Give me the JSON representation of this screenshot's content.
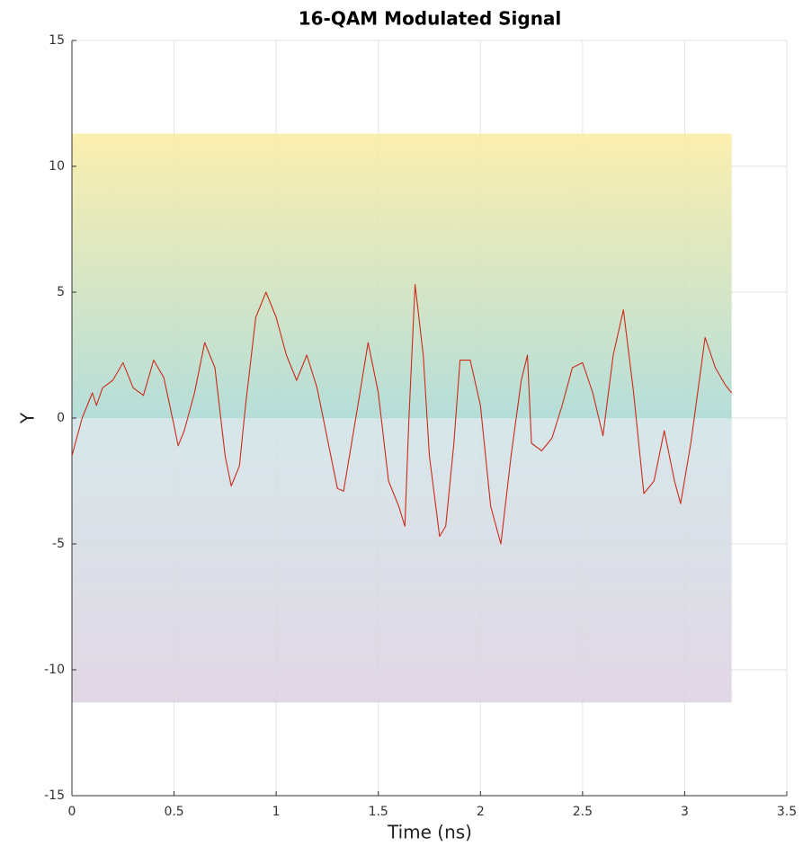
{
  "chart_data": {
    "type": "line",
    "title": "16-QAM Modulated Signal",
    "xlabel": "Time (ns)",
    "ylabel": "Y",
    "x": [
      0,
      0.05,
      0.1,
      0.12,
      0.15,
      0.2,
      0.25,
      0.3,
      0.35,
      0.4,
      0.45,
      0.5,
      0.52,
      0.55,
      0.6,
      0.65,
      0.7,
      0.75,
      0.78,
      0.82,
      0.85,
      0.9,
      0.95,
      1.0,
      1.05,
      1.1,
      1.15,
      1.2,
      1.25,
      1.3,
      1.33,
      1.4,
      1.45,
      1.5,
      1.55,
      1.6,
      1.63,
      1.65,
      1.68,
      1.72,
      1.75,
      1.8,
      1.83,
      1.87,
      1.9,
      1.95,
      2.0,
      2.05,
      2.1,
      2.15,
      2.2,
      2.23,
      2.25,
      2.3,
      2.35,
      2.4,
      2.45,
      2.5,
      2.55,
      2.6,
      2.65,
      2.7,
      2.75,
      2.8,
      2.85,
      2.9,
      2.95,
      2.98,
      3.03,
      3.1,
      3.15,
      3.2,
      3.23
    ],
    "series": [
      {
        "color": "#cc2a1a",
        "values": [
          -1.5,
          0,
          1.0,
          0.5,
          1.2,
          1.5,
          2.2,
          1.2,
          0.9,
          2.3,
          1.6,
          -0.3,
          -1.1,
          -0.5,
          1.0,
          3.0,
          2.0,
          -1.5,
          -2.7,
          -1.9,
          0.5,
          4.0,
          5.0,
          4.0,
          2.5,
          1.5,
          2.5,
          1.2,
          -0.8,
          -2.8,
          -2.9,
          0.5,
          3.0,
          1.0,
          -2.5,
          -3.5,
          -4.3,
          0,
          5.3,
          2.5,
          -1.5,
          -4.7,
          -4.3,
          -1.0,
          2.3,
          2.3,
          0.5,
          -3.5,
          -5.0,
          -1.5,
          1.5,
          2.5,
          -1.0,
          -1.3,
          -0.8,
          0.5,
          2.0,
          2.2,
          1.0,
          -0.7,
          2.5,
          4.3,
          1.0,
          -3.0,
          -2.5,
          -0.5,
          -2.5,
          -3.4,
          -1.0,
          3.2,
          2.0,
          1.3,
          1.0
        ]
      }
    ],
    "band": {
      "x": [
        0,
        3.23
      ],
      "y": [
        -11.3,
        11.3
      ],
      "colors": [
        "#dcd0e0",
        "#cfe3e6",
        "#a8d8d3",
        "#fbeca0"
      ]
    },
    "xlim": [
      0,
      3.5
    ],
    "ylim": [
      -15,
      15
    ],
    "xticks": [
      0,
      0.5,
      1,
      1.5,
      2,
      2.5,
      3,
      3.5
    ],
    "yticks": [
      -15,
      -10,
      -5,
      0,
      5,
      10,
      15
    ],
    "grid": true
  }
}
